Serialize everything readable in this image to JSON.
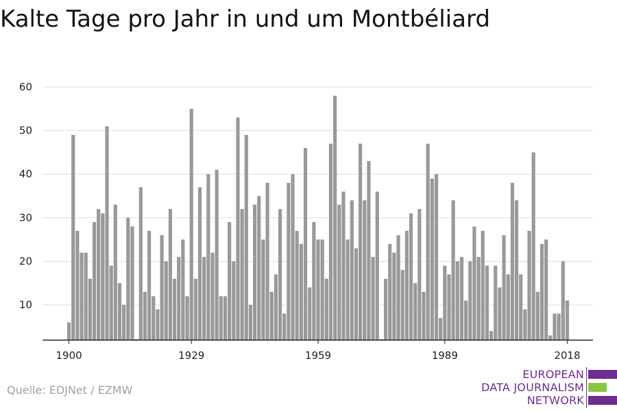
{
  "chart_data": {
    "type": "bar",
    "title": "Kalte Tage pro Jahr in und um Montbéliard",
    "xlabel": "",
    "ylabel": "",
    "x_start": 1900,
    "x_end": 2018,
    "xticks": [
      1900,
      1929,
      1959,
      1989,
      2018
    ],
    "yticks": [
      10,
      20,
      30,
      40,
      50,
      60
    ],
    "ylim": [
      2,
      60
    ],
    "grid": true,
    "bar_color": "#999999",
    "values": [
      6,
      49,
      27,
      22,
      22,
      16,
      29,
      32,
      31,
      51,
      19,
      33,
      15,
      10,
      30,
      28,
      2,
      37,
      13,
      27,
      12,
      9,
      26,
      20,
      32,
      16,
      21,
      25,
      12,
      55,
      16,
      37,
      21,
      40,
      22,
      41,
      12,
      12,
      29,
      20,
      53,
      32,
      49,
      10,
      33,
      35,
      25,
      38,
      13,
      17,
      32,
      8,
      38,
      40,
      27,
      24,
      46,
      14,
      29,
      25,
      25,
      16,
      47,
      58,
      33,
      36,
      25,
      34,
      23,
      47,
      34,
      43,
      21,
      36,
      2,
      16,
      24,
      22,
      26,
      18,
      27,
      31,
      15,
      32,
      13,
      47,
      39,
      40,
      7,
      19,
      17,
      34,
      20,
      21,
      11,
      20,
      28,
      21,
      27,
      19,
      4,
      19,
      14,
      26,
      17,
      38,
      34,
      17,
      9,
      27,
      45,
      13,
      24,
      25,
      3,
      8,
      8,
      20,
      11
    ]
  },
  "footer": {
    "source": "Quelle: EDJNet / EZMW"
  },
  "logo": {
    "line1": "EUROPEAN",
    "line2": "DATA JOURNALISM",
    "line3": "NETWORK",
    "purple": "#6d2c8f",
    "green": "#8cc63f"
  }
}
